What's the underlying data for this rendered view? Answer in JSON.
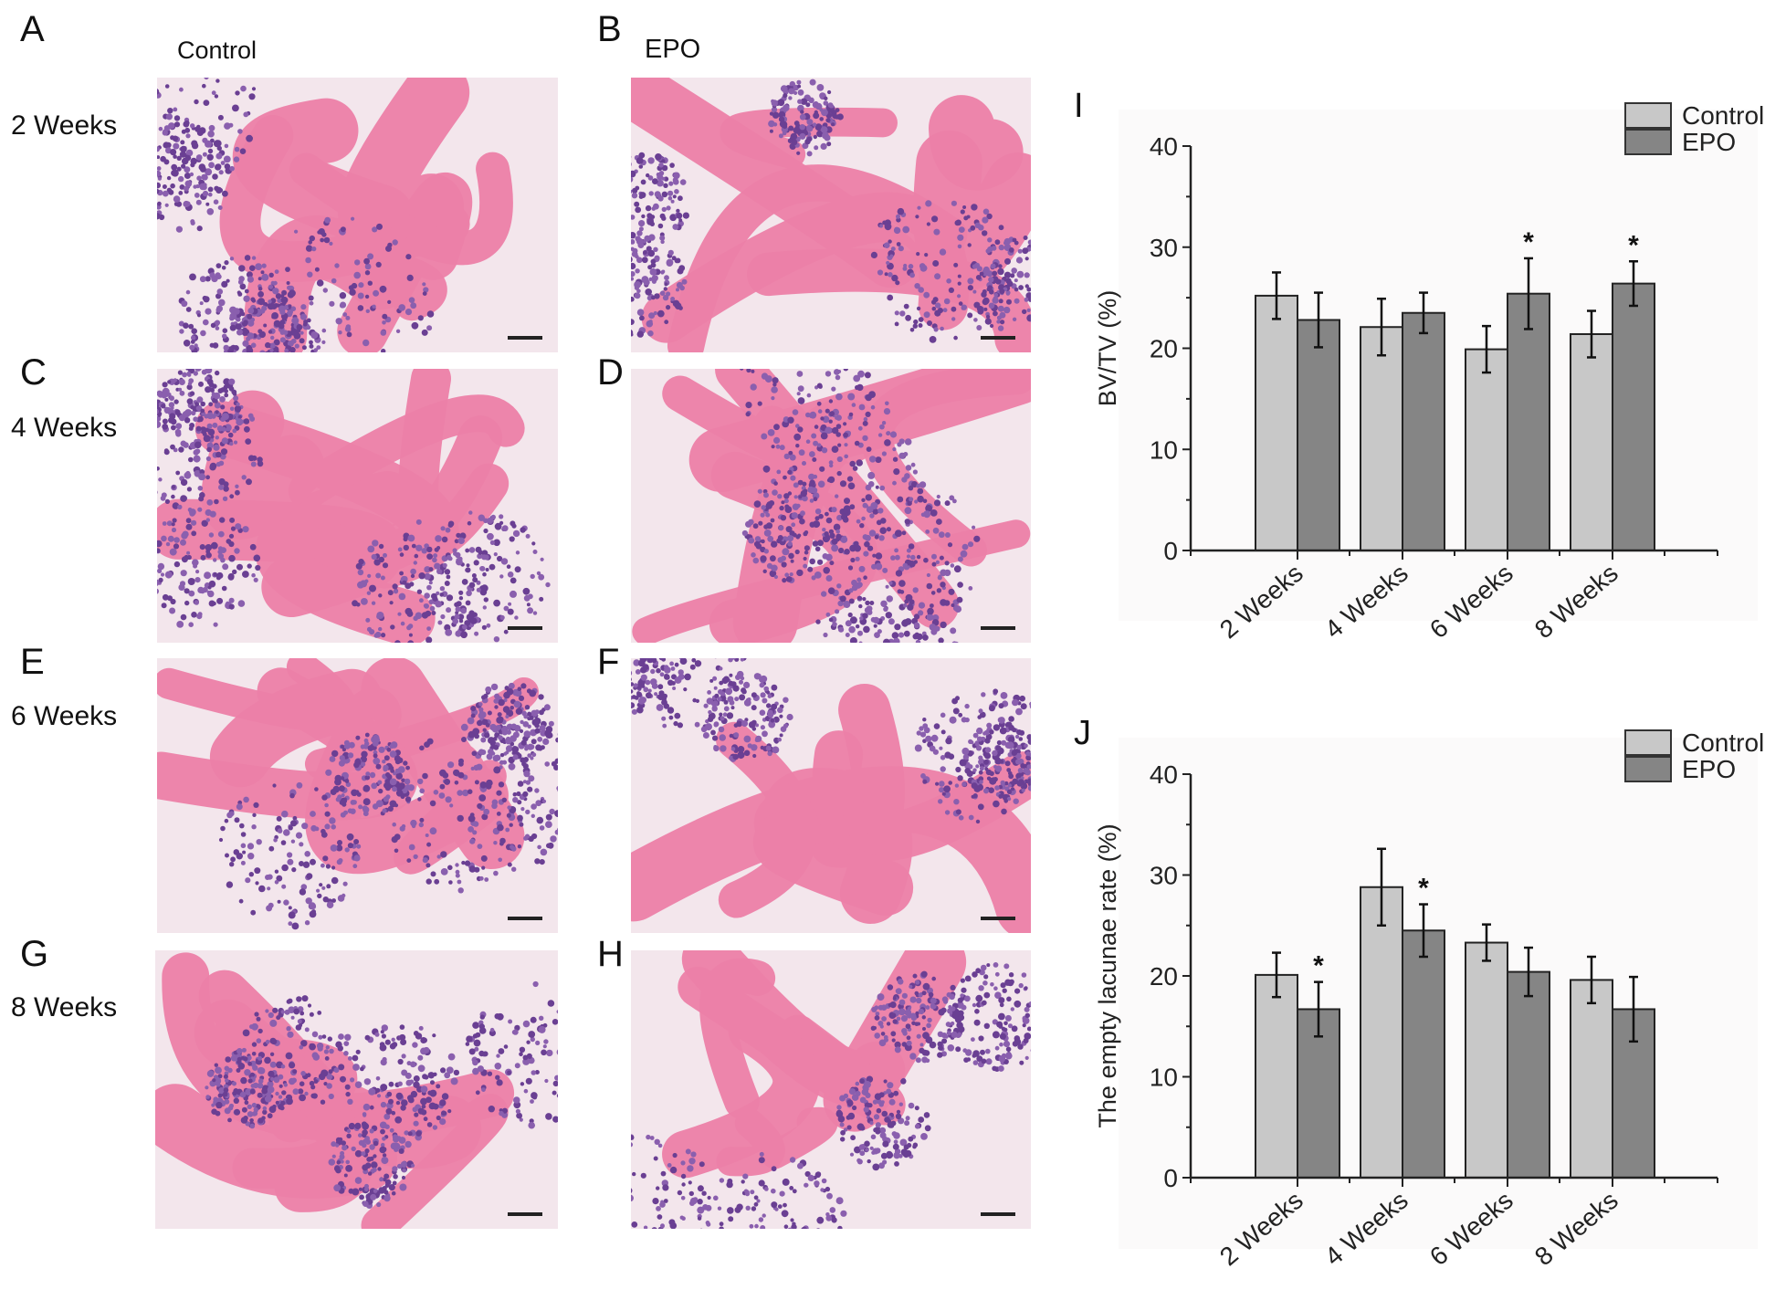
{
  "histology": {
    "column_headers": [
      "Control",
      "EPO"
    ],
    "row_labels": [
      "2 Weeks",
      "4 Weeks",
      "6 Weeks",
      "8 Weeks"
    ],
    "panel_letters": [
      "A",
      "B",
      "C",
      "D",
      "E",
      "F",
      "G",
      "H"
    ]
  },
  "chart_data": [
    {
      "panel_letter": "I",
      "type": "bar",
      "categories": [
        "2 Weeks",
        "4 Weeks",
        "6 Weeks",
        "8 Weeks"
      ],
      "series": [
        {
          "name": "Control",
          "color": "#c8c8c8",
          "values": [
            25.2,
            22.1,
            19.9,
            21.4
          ],
          "errors": [
            2.3,
            2.8,
            2.3,
            2.3
          ]
        },
        {
          "name": "EPO",
          "color": "#858585",
          "values": [
            22.8,
            23.5,
            25.4,
            26.4
          ],
          "errors": [
            2.7,
            2.0,
            3.5,
            2.2
          ]
        }
      ],
      "significance": [
        {
          "category": "6 Weeks",
          "series": "EPO",
          "mark": "*"
        },
        {
          "category": "8 Weeks",
          "series": "EPO",
          "mark": "*"
        }
      ],
      "ylabel": "BV/TV (%)",
      "xlabel": "",
      "ylim": [
        0,
        40
      ],
      "yticks": [
        "0",
        "10",
        "20",
        "30",
        "40"
      ],
      "legend": "top-right",
      "grid": false
    },
    {
      "panel_letter": "J",
      "type": "bar",
      "categories": [
        "2 Weeks",
        "4 Weeks",
        "6 Weeks",
        "8 Weeks"
      ],
      "series": [
        {
          "name": "Control",
          "color": "#c8c8c8",
          "values": [
            20.1,
            28.8,
            23.3,
            19.6
          ],
          "errors": [
            2.2,
            3.8,
            1.8,
            2.3
          ]
        },
        {
          "name": "EPO",
          "color": "#858585",
          "values": [
            16.7,
            24.5,
            20.4,
            16.7
          ],
          "errors": [
            2.7,
            2.6,
            2.4,
            3.2
          ]
        }
      ],
      "significance": [
        {
          "category": "2 Weeks",
          "series": "EPO",
          "mark": "*"
        },
        {
          "category": "4 Weeks",
          "series": "EPO",
          "mark": "*"
        }
      ],
      "ylabel": "The empty lacunae rate (%)",
      "xlabel": "",
      "ylim": [
        0,
        40
      ],
      "yticks": [
        "0",
        "10",
        "20",
        "30",
        "40"
      ],
      "legend": "top-right",
      "grid": false
    }
  ]
}
